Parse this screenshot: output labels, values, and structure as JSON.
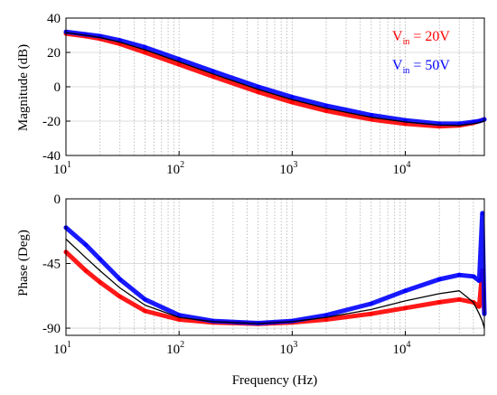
{
  "chart_data": [
    {
      "type": "line",
      "ylabel": "Magnitude (dB)",
      "xscale": "log",
      "xlim": [
        10,
        50000
      ],
      "ylim": [
        -40,
        40
      ],
      "yticks": [
        40,
        20,
        0,
        -20,
        -40
      ],
      "xticks": [
        {
          "base": "10",
          "exp": "1"
        },
        {
          "base": "10",
          "exp": "2"
        },
        {
          "base": "10",
          "exp": "3"
        },
        {
          "base": "10",
          "exp": "4"
        }
      ],
      "grid": true,
      "legend": {
        "placement": "top-right",
        "entries": [
          {
            "label_main": "V",
            "label_sub": "in",
            "label_rest": " = 20V",
            "color": "#ff0000"
          },
          {
            "label_main": "V",
            "label_sub": "in",
            "label_rest": " = 50V",
            "color": "#0000ff"
          }
        ]
      },
      "series": [
        {
          "color": "#ff0000",
          "x": [
            10,
            15,
            20,
            30,
            50,
            100,
            200,
            500,
            1000,
            2000,
            5000,
            10000,
            20000,
            30000,
            40000,
            45000,
            50000
          ],
          "y": [
            31,
            29.5,
            28,
            25,
            20,
            13,
            6,
            -3,
            -9,
            -14,
            -19,
            -21.5,
            -23,
            -22.5,
            -21,
            -20,
            -19
          ]
        },
        {
          "color": "#0000ff",
          "x": [
            10,
            15,
            20,
            30,
            50,
            100,
            200,
            500,
            1000,
            2000,
            5000,
            10000,
            20000,
            30000,
            40000,
            45000,
            50000
          ],
          "y": [
            32,
            30.5,
            29.5,
            27,
            23,
            16,
            9,
            0,
            -6,
            -11,
            -16.5,
            -19.5,
            -21.5,
            -21.5,
            -20.5,
            -20,
            -19
          ]
        },
        {
          "color": "#000000",
          "x": [
            10,
            15,
            20,
            30,
            50,
            100,
            200,
            500,
            1000,
            2000,
            5000,
            10000,
            20000,
            30000,
            40000,
            45000,
            50000
          ],
          "y": [
            31.5,
            30,
            28.7,
            26,
            21.5,
            14.5,
            7.5,
            -1.5,
            -7.5,
            -12.5,
            -17.8,
            -20.5,
            -22.3,
            -22.5,
            -21.5,
            -20.8,
            -20
          ]
        }
      ]
    },
    {
      "type": "line",
      "ylabel": "Phase (Deg)",
      "xlabel": "Frequency (Hz)",
      "xscale": "log",
      "xlim": [
        10,
        50000
      ],
      "ylim": [
        -95,
        0
      ],
      "yticks": [
        0,
        -45,
        -90
      ],
      "xticks": [
        {
          "base": "10",
          "exp": "1"
        },
        {
          "base": "10",
          "exp": "2"
        },
        {
          "base": "10",
          "exp": "3"
        },
        {
          "base": "10",
          "exp": "4"
        }
      ],
      "grid": true,
      "series": [
        {
          "color": "#ff0000",
          "x": [
            10,
            15,
            20,
            30,
            50,
            100,
            200,
            500,
            1000,
            2000,
            5000,
            10000,
            20000,
            30000,
            40000,
            45000,
            48000,
            50000
          ],
          "y": [
            -37,
            -50,
            -58,
            -68,
            -78,
            -84,
            -86,
            -87,
            -86,
            -84,
            -80,
            -76,
            -72,
            -70,
            -72,
            -75,
            -50,
            -80
          ]
        },
        {
          "color": "#0000ff",
          "x": [
            10,
            15,
            20,
            30,
            50,
            100,
            200,
            500,
            1000,
            2000,
            5000,
            10000,
            20000,
            30000,
            40000,
            45000,
            48000,
            50000
          ],
          "y": [
            -20,
            -32,
            -42,
            -56,
            -70,
            -81,
            -85,
            -86.5,
            -85,
            -81,
            -73,
            -64,
            -56,
            -53,
            -54,
            -57,
            -10,
            -80
          ]
        },
        {
          "color": "#000000",
          "x": [
            10,
            15,
            20,
            30,
            50,
            100,
            200,
            500,
            1000,
            2000,
            5000,
            10000,
            20000,
            30000,
            40000,
            45000,
            48000,
            50000
          ],
          "y": [
            -28,
            -41,
            -50,
            -62,
            -74,
            -82.5,
            -85.5,
            -86.8,
            -85.5,
            -82.5,
            -77,
            -71,
            -66,
            -64,
            -72,
            -80,
            -85,
            -90
          ]
        }
      ]
    }
  ]
}
